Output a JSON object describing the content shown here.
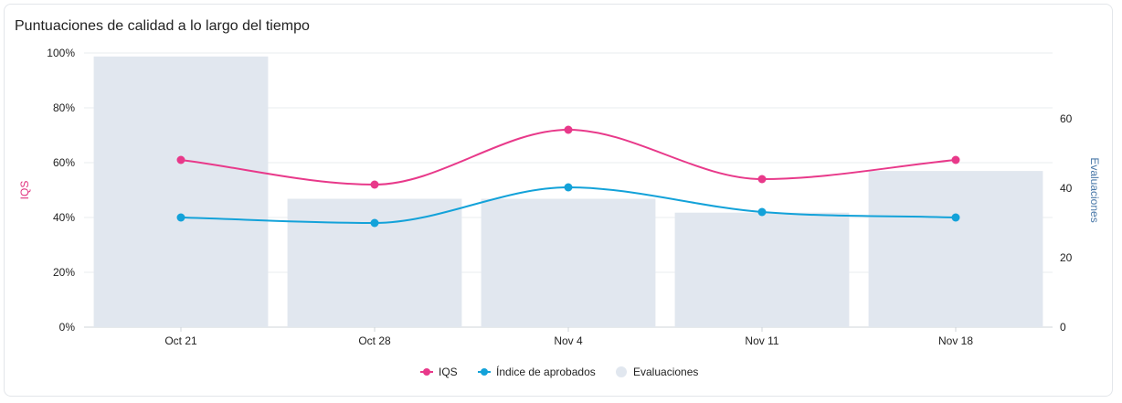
{
  "card": {
    "title": "Puntuaciones de calidad a lo largo del tiempo"
  },
  "chart_data": {
    "type": "bar",
    "title": "Puntuaciones de calidad a lo largo del tiempo",
    "categories": [
      "Oct 21",
      "Oct 28",
      "Nov 4",
      "Nov 11",
      "Nov 18"
    ],
    "y_left": {
      "label": "IQS",
      "ticks": [
        "0%",
        "20%",
        "40%",
        "60%",
        "80%",
        "100%"
      ],
      "range": [
        0,
        100
      ],
      "color": "#e0337f"
    },
    "y_right": {
      "label": "Evaluaciones",
      "ticks": [
        "0",
        "20",
        "40",
        "60"
      ],
      "range": [
        0,
        79
      ],
      "color": "#4a78a8"
    },
    "series": [
      {
        "name": "IQS",
        "kind": "line",
        "axis": "left",
        "color": "#e8398a",
        "values": [
          61,
          52,
          72,
          54,
          61
        ]
      },
      {
        "name": "Índice de aprobados",
        "kind": "line",
        "axis": "left",
        "color": "#13a2d9",
        "values": [
          40,
          38,
          51,
          42,
          40
        ]
      },
      {
        "name": "Evaluaciones",
        "kind": "bar",
        "axis": "right",
        "color": "#e1e7ef",
        "values": [
          78,
          37,
          37,
          33,
          45
        ]
      }
    ],
    "grid": true,
    "legend": "bottom-center"
  }
}
